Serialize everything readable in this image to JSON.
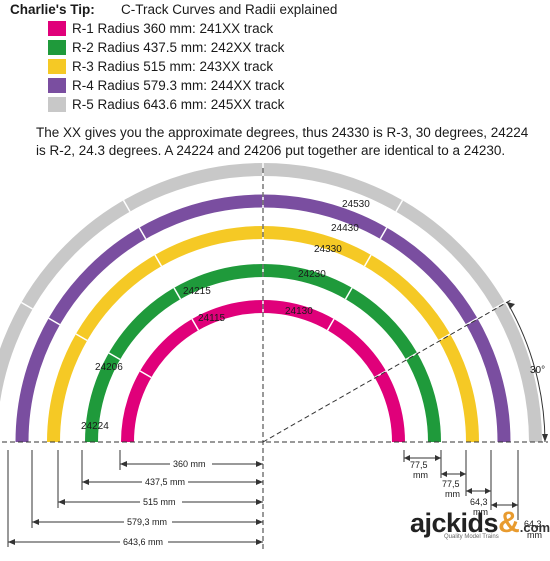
{
  "header": {
    "tip_label": "Charlie's Tip:",
    "subtitle": "C-Track Curves and Radii explained"
  },
  "legend": [
    {
      "label": "R-1 Radius 360 mm: 241XX track",
      "color": "#e0007a"
    },
    {
      "label": "R-2 Radius 437.5 mm: 242XX track",
      "color": "#1f9a3b"
    },
    {
      "label": "R-3 Radius 515 mm: 243XX track",
      "color": "#f5c925"
    },
    {
      "label": "R-4 Radius 579.3 mm: 244XX track",
      "color": "#7a4ea0"
    },
    {
      "label": "R-5 Radius 643.6 mm: 245XX track",
      "color": "#c8c8c8"
    }
  ],
  "paragraph": "The XX gives you the approximate degrees, thus 24330 is R-3, 30 degrees, 24224 is R-2, 24.3 degrees. A 24224 and 24206 put together are identical to a 24230.",
  "track_labels": {
    "t24530": "24530",
    "t24430": "24430",
    "t24330": "24330",
    "t24230": "24230",
    "t24130": "24130",
    "t24215": "24215",
    "t24115": "24115",
    "t24206": "24206",
    "t24224": "24224"
  },
  "angle_label": "30°",
  "radius_dims": {
    "r1": "360 mm",
    "r2": "437,5 mm",
    "r3": "515 mm",
    "r4": "579,3 mm",
    "r5": "643,6 mm"
  },
  "spacing_dims": {
    "d1_value": "77,5",
    "d1_unit": "mm",
    "d2_value": "77,5",
    "d2_unit": "mm",
    "d3_value": "64,3",
    "d3_unit": "mm",
    "d4_value": "64,3",
    "d4_unit": "mm"
  },
  "logo": {
    "main": "ajckids",
    "amp": "&",
    "com": ".com",
    "tagline": "Quality Model     Trains"
  }
}
